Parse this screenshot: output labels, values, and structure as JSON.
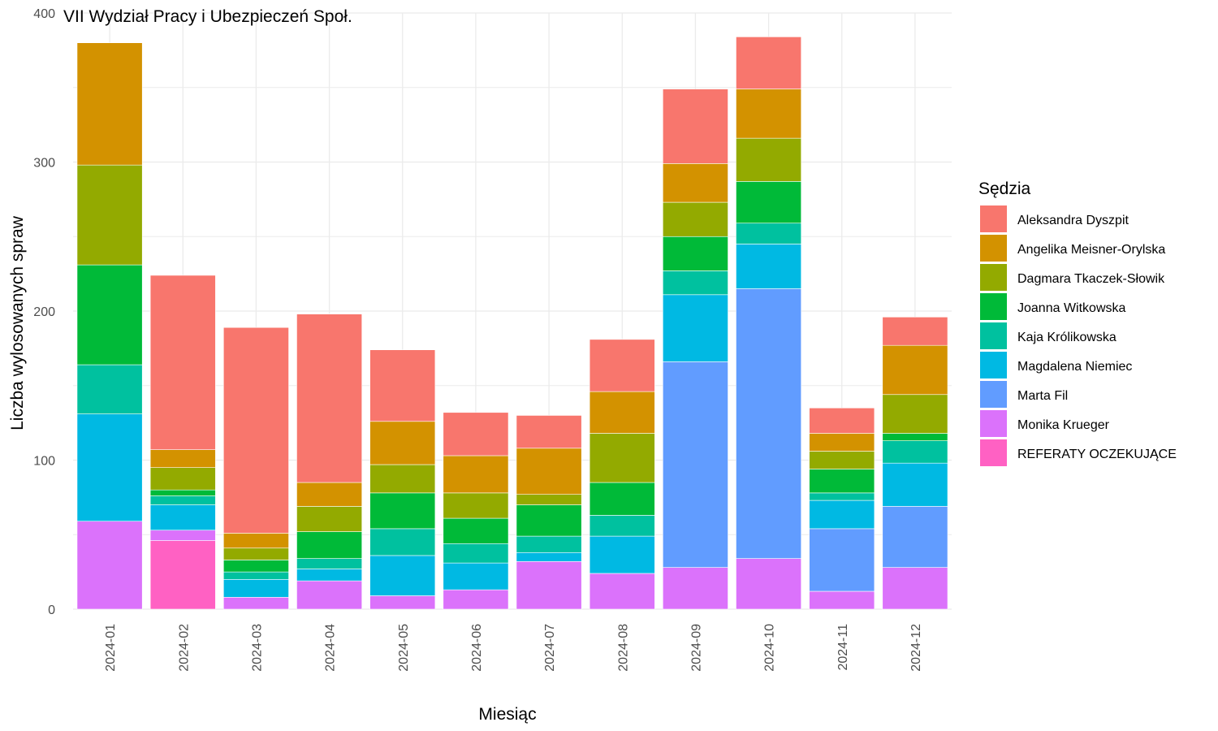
{
  "chart_data": {
    "type": "bar",
    "stacked": true,
    "title": "VII Wydział Pracy i Ubezpieczeń Społ.",
    "xlabel": "Miesiąc",
    "ylabel": "Liczba wylosowanych spraw",
    "ylim": [
      0,
      400
    ],
    "yticks": [
      0,
      100,
      200,
      300,
      400
    ],
    "grid": true,
    "legend_position": "right",
    "legend_title": "Sędzia",
    "categories": [
      "2024-01",
      "2024-02",
      "2024-03",
      "2024-04",
      "2024-05",
      "2024-06",
      "2024-07",
      "2024-08",
      "2024-09",
      "2024-10",
      "2024-11",
      "2024-12"
    ],
    "series": [
      {
        "name": "REFERATY OCZEKUJĄCE",
        "color": "#FF61C3",
        "values": [
          0,
          46,
          0,
          0,
          0,
          0,
          0,
          0,
          0,
          0,
          0,
          0
        ]
      },
      {
        "name": "Monika Krueger",
        "color": "#DB72FB",
        "values": [
          59,
          7,
          8,
          19,
          9,
          13,
          32,
          24,
          28,
          34,
          12,
          28
        ]
      },
      {
        "name": "Marta Fil",
        "color": "#619CFF",
        "values": [
          0,
          0,
          0,
          0,
          0,
          0,
          0,
          0,
          138,
          181,
          42,
          41
        ]
      },
      {
        "name": "Magdalena Niemiec",
        "color": "#00B9E3",
        "values": [
          72,
          17,
          12,
          8,
          27,
          18,
          6,
          25,
          45,
          30,
          19,
          29
        ]
      },
      {
        "name": "Kaja Królikowska",
        "color": "#00C19F",
        "values": [
          33,
          6,
          5,
          7,
          18,
          13,
          11,
          14,
          16,
          14,
          5,
          15
        ]
      },
      {
        "name": "Joanna Witkowska",
        "color": "#00BA38",
        "values": [
          67,
          4,
          8,
          18,
          24,
          17,
          21,
          22,
          23,
          28,
          16,
          5
        ]
      },
      {
        "name": "Dagmara Tkaczek-Słowik",
        "color": "#93AA00",
        "values": [
          67,
          15,
          8,
          17,
          19,
          17,
          7,
          33,
          23,
          29,
          12,
          26
        ]
      },
      {
        "name": "Angelika Meisner-Orylska",
        "color": "#D39200",
        "values": [
          82,
          12,
          10,
          16,
          29,
          25,
          31,
          28,
          26,
          33,
          12,
          33
        ]
      },
      {
        "name": "Aleksandra Dyszpit",
        "color": "#F8766D",
        "values": [
          0,
          117,
          138,
          113,
          48,
          29,
          22,
          35,
          50,
          35,
          17,
          19
        ]
      }
    ],
    "legend_order": [
      "Aleksandra Dyszpit",
      "Angelika Meisner-Orylska",
      "Dagmara Tkaczek-Słowik",
      "Joanna Witkowska",
      "Kaja Królikowska",
      "Magdalena Niemiec",
      "Marta Fil",
      "Monika Krueger",
      "REFERATY OCZEKUJĄCE"
    ]
  }
}
